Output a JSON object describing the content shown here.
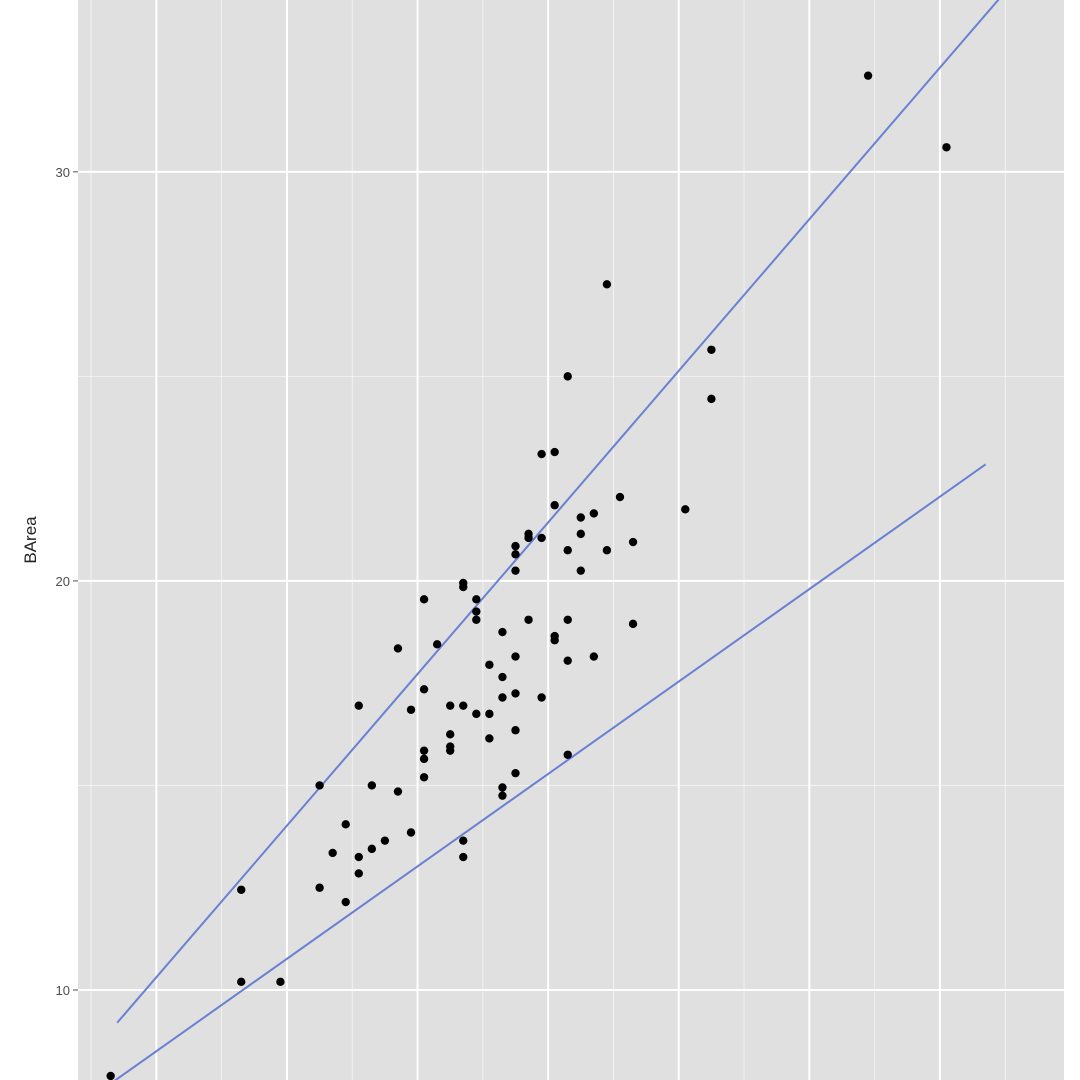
{
  "chart_data": {
    "type": "scatter",
    "title": "",
    "xlabel": "",
    "ylabel": "BArea",
    "xlim": [
      0.4,
      7.95
    ],
    "ylim": [
      7.8,
      34.2
    ],
    "x_major_ticks": [],
    "x_minor_ticks": [],
    "y_major_ticks": [
      10,
      20,
      30
    ],
    "y_tick_labels": [
      "10",
      "20",
      "30"
    ],
    "y_minor_ticks": [
      15,
      25
    ],
    "grid": true,
    "panel_color": "#e0e0e0",
    "grid_color": "#ffffff",
    "point_color": "#000000",
    "line_color": "#6a80d2",
    "lines": [
      {
        "x": [
          0.7,
          7.5
        ],
        "y": [
          9.2,
          34.4
        ]
      },
      {
        "x": [
          0.6,
          7.35
        ],
        "y": [
          7.6,
          22.85
        ]
      }
    ],
    "points": [
      [
        0.65,
        7.9
      ],
      [
        1.65,
        12.45
      ],
      [
        1.65,
        10.2
      ],
      [
        1.95,
        10.2
      ],
      [
        2.25,
        15.0
      ],
      [
        2.25,
        12.5
      ],
      [
        2.35,
        13.35
      ],
      [
        2.45,
        14.05
      ],
      [
        2.45,
        12.15
      ],
      [
        2.55,
        16.95
      ],
      [
        2.55,
        13.25
      ],
      [
        2.55,
        12.85
      ],
      [
        2.65,
        15.0
      ],
      [
        2.65,
        13.45
      ],
      [
        2.75,
        13.65
      ],
      [
        2.85,
        18.35
      ],
      [
        2.85,
        14.85
      ],
      [
        2.95,
        16.85
      ],
      [
        2.95,
        13.85
      ],
      [
        3.05,
        19.55
      ],
      [
        3.05,
        17.35
      ],
      [
        3.05,
        15.85
      ],
      [
        3.05,
        15.65
      ],
      [
        3.05,
        15.2
      ],
      [
        3.15,
        18.45
      ],
      [
        3.25,
        16.95
      ],
      [
        3.25,
        16.25
      ],
      [
        3.25,
        15.95
      ],
      [
        3.25,
        15.85
      ],
      [
        3.35,
        19.95
      ],
      [
        3.35,
        19.85
      ],
      [
        3.35,
        16.95
      ],
      [
        3.35,
        13.65
      ],
      [
        3.35,
        13.25
      ],
      [
        3.45,
        19.55
      ],
      [
        3.45,
        19.25
      ],
      [
        3.45,
        19.05
      ],
      [
        3.45,
        16.75
      ],
      [
        3.55,
        17.95
      ],
      [
        3.55,
        16.75
      ],
      [
        3.55,
        16.15
      ],
      [
        3.65,
        18.75
      ],
      [
        3.65,
        17.65
      ],
      [
        3.65,
        17.15
      ],
      [
        3.65,
        14.95
      ],
      [
        3.65,
        14.75
      ],
      [
        3.75,
        20.85
      ],
      [
        3.75,
        20.65
      ],
      [
        3.75,
        20.25
      ],
      [
        3.75,
        18.15
      ],
      [
        3.75,
        17.25
      ],
      [
        3.75,
        16.35
      ],
      [
        3.75,
        15.3
      ],
      [
        3.85,
        21.15
      ],
      [
        3.85,
        21.05
      ],
      [
        3.85,
        19.05
      ],
      [
        3.95,
        23.1
      ],
      [
        3.95,
        21.05
      ],
      [
        3.95,
        17.15
      ],
      [
        4.05,
        23.15
      ],
      [
        4.05,
        21.85
      ],
      [
        4.05,
        18.65
      ],
      [
        4.05,
        18.55
      ],
      [
        4.15,
        25.0
      ],
      [
        4.15,
        20.75
      ],
      [
        4.15,
        19.05
      ],
      [
        4.15,
        18.05
      ],
      [
        4.15,
        15.75
      ],
      [
        4.25,
        21.55
      ],
      [
        4.25,
        21.15
      ],
      [
        4.25,
        20.25
      ],
      [
        4.35,
        21.65
      ],
      [
        4.35,
        18.15
      ],
      [
        4.45,
        27.25
      ],
      [
        4.45,
        20.75
      ],
      [
        4.55,
        22.05
      ],
      [
        4.65,
        20.95
      ],
      [
        4.65,
        18.95
      ],
      [
        5.05,
        21.75
      ],
      [
        5.25,
        25.65
      ],
      [
        5.25,
        24.45
      ],
      [
        6.45,
        32.35
      ],
      [
        7.05,
        30.6
      ]
    ]
  }
}
